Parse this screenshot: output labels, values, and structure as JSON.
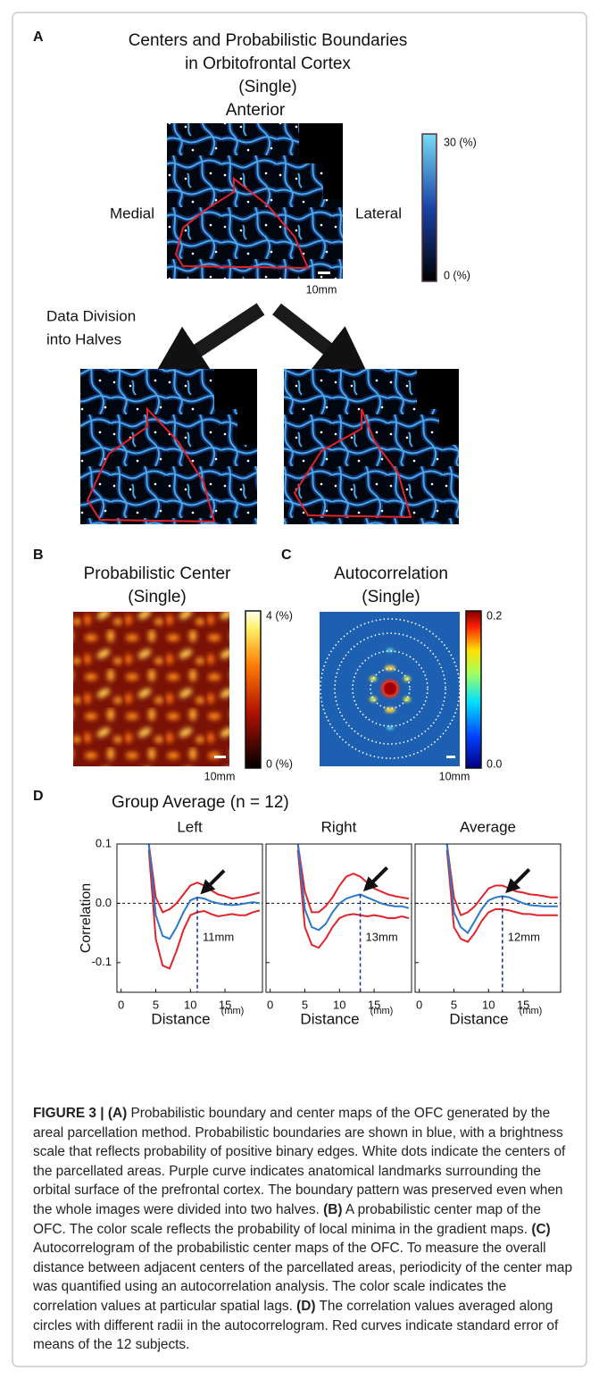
{
  "panel_a": {
    "label": "A",
    "title": [
      "Centers and Probabilistic Boundaries",
      "in Orbitofrontal Cortex",
      "(Single)"
    ],
    "anterior": "Anterior",
    "medial": "Medial",
    "lateral": "Lateral",
    "scale_bar": "10mm",
    "colorbar": {
      "max": "30 (%)",
      "min": "0 (%)"
    },
    "division": [
      "Data Division",
      "into Halves"
    ]
  },
  "panel_b": {
    "label": "B",
    "title": [
      "Probabilistic Center",
      "(Single)"
    ],
    "scale_bar": "10mm",
    "colorbar": {
      "max": "4 (%)",
      "min": "0 (%)"
    }
  },
  "panel_c": {
    "label": "C",
    "title": [
      "Autocorrelation",
      "(Single)"
    ],
    "scale_bar": "10mm",
    "colorbar": {
      "max": "0.2",
      "min": "0.0"
    }
  },
  "panel_d": {
    "label": "D",
    "title": "Group Average (n = 12)"
  },
  "chart_data": [
    {
      "type": "line",
      "title": "Left",
      "y_label": "Correlation",
      "x_label": "Distance",
      "x_unit": "(mm)",
      "x": [
        4,
        5,
        6,
        7,
        8,
        9,
        10,
        11,
        12,
        13,
        14,
        15,
        16,
        17,
        18,
        19,
        20
      ],
      "series": [
        {
          "color": "#e0242a",
          "values": [
            0.1,
            0.01,
            -0.015,
            -0.01,
            0.0,
            0.015,
            0.03,
            0.035,
            0.03,
            0.022,
            0.015,
            0.012,
            0.008,
            0.01,
            0.012,
            0.015,
            0.018
          ]
        },
        {
          "color": "#e0242a",
          "values": [
            0.09,
            -0.06,
            -0.105,
            -0.11,
            -0.08,
            -0.045,
            -0.02,
            -0.015,
            -0.013,
            -0.018,
            -0.022,
            -0.02,
            -0.018,
            -0.02,
            -0.02,
            -0.015,
            -0.012
          ]
        },
        {
          "color": "#2a78c8",
          "values": [
            0.1,
            -0.02,
            -0.055,
            -0.06,
            -0.04,
            -0.015,
            0.005,
            0.01,
            0.008,
            0.003,
            0.0,
            -0.002,
            -0.003,
            -0.002,
            0.0,
            0.002,
            0.0
          ]
        }
      ],
      "xlim": [
        -0.6,
        20.4
      ],
      "ylim": [
        -0.15,
        0.1
      ],
      "xticks": [
        0,
        5,
        10,
        15
      ],
      "yticks": [
        -0.1,
        {
          "value": 0,
          "label": "0.0"
        },
        0.1
      ],
      "hline": 0,
      "annotation": {
        "x": 11,
        "label": "11mm"
      }
    },
    {
      "type": "line",
      "title": "Right",
      "x_label": "Distance",
      "x_unit": "(mm)",
      "x": [
        4,
        5,
        6,
        7,
        8,
        9,
        10,
        11,
        12,
        13,
        14,
        15,
        16,
        17,
        18,
        19,
        20
      ],
      "series": [
        {
          "color": "#e0242a",
          "values": [
            0.1,
            0.02,
            -0.015,
            -0.015,
            -0.005,
            0.01,
            0.03,
            0.045,
            0.05,
            0.045,
            0.035,
            0.025,
            0.02,
            0.015,
            0.012,
            0.01,
            0.008
          ]
        },
        {
          "color": "#e0242a",
          "values": [
            0.09,
            -0.04,
            -0.07,
            -0.075,
            -0.06,
            -0.04,
            -0.025,
            -0.02,
            -0.018,
            -0.02,
            -0.022,
            -0.02,
            -0.022,
            -0.025,
            -0.025,
            -0.022,
            -0.025
          ]
        },
        {
          "color": "#2a78c8",
          "values": [
            0.1,
            -0.01,
            -0.04,
            -0.045,
            -0.035,
            -0.015,
            0.0,
            0.008,
            0.012,
            0.015,
            0.01,
            0.005,
            0.0,
            -0.003,
            -0.005,
            -0.005,
            -0.008
          ]
        }
      ],
      "xlim": [
        -0.6,
        20.4
      ],
      "ylim": [
        -0.15,
        0.1
      ],
      "xticks": [
        0,
        5,
        10,
        15
      ],
      "yticks": [
        -0.1,
        0,
        0.1
      ],
      "hline": 0,
      "annotation": {
        "x": 13,
        "label": "13mm"
      }
    },
    {
      "type": "line",
      "title": "Average",
      "x_label": "Distance",
      "x_unit": "(mm)",
      "x": [
        4,
        5,
        6,
        7,
        8,
        9,
        10,
        11,
        12,
        13,
        14,
        15,
        16,
        17,
        18,
        19,
        20
      ],
      "series": [
        {
          "color": "#e0242a",
          "values": [
            0.1,
            0.01,
            -0.02,
            -0.015,
            -0.005,
            0.01,
            0.025,
            0.03,
            0.03,
            0.025,
            0.02,
            0.018,
            0.015,
            0.014,
            0.012,
            0.01,
            0.01
          ]
        },
        {
          "color": "#e0242a",
          "values": [
            0.09,
            -0.04,
            -0.06,
            -0.065,
            -0.05,
            -0.03,
            -0.015,
            -0.01,
            -0.01,
            -0.012,
            -0.015,
            -0.018,
            -0.018,
            -0.02,
            -0.02,
            -0.02,
            -0.02
          ]
        },
        {
          "color": "#2a78c8",
          "values": [
            0.1,
            -0.015,
            -0.04,
            -0.05,
            -0.03,
            -0.01,
            0.005,
            0.01,
            0.012,
            0.01,
            0.005,
            0.0,
            -0.003,
            -0.004,
            -0.005,
            -0.005,
            -0.005
          ]
        }
      ],
      "xlim": [
        -0.6,
        20.4
      ],
      "ylim": [
        -0.15,
        0.1
      ],
      "xticks": [
        0,
        5,
        10,
        15
      ],
      "yticks": [
        -0.1,
        0,
        0.1
      ],
      "hline": 0,
      "annotation": {
        "x": 12,
        "label": "12mm"
      }
    }
  ],
  "caption": [
    {
      "text": "FIGURE 3 | (A)",
      "bold": true
    },
    {
      "text": " Probabilistic boundary and center maps of the OFC generated by the areal parcellation method. Probabilistic boundaries are shown in blue, with a brightness scale that reflects probability of positive binary edges. White dots indicate the centers of the parcellated areas. Purple curve indicates anatomical landmarks surrounding the orbital surface of the prefrontal cortex. The boundary pattern was preserved even when the whole images were divided into two halves. ",
      "bold": false
    },
    {
      "text": "(B)",
      "bold": true
    },
    {
      "text": " A probabilistic center map of the OFC. The color scale reflects the probability of local minima in the gradient maps. ",
      "bold": false
    },
    {
      "text": "(C)",
      "bold": true
    },
    {
      "text": " Autocorrelogram of the probabilistic center maps of the OFC. To measure the overall distance between adjacent centers of the parcellated areas, periodicity of the center map was quantified using an autocorrelation analysis. The color scale indicates the correlation values at particular spatial lags. ",
      "bold": false
    },
    {
      "text": "(D)",
      "bold": true
    },
    {
      "text": " The correlation values averaged along circles with different radii in the autocorrelogram. Red curves indicate standard error of means of the 12 subjects.",
      "bold": false
    }
  ]
}
